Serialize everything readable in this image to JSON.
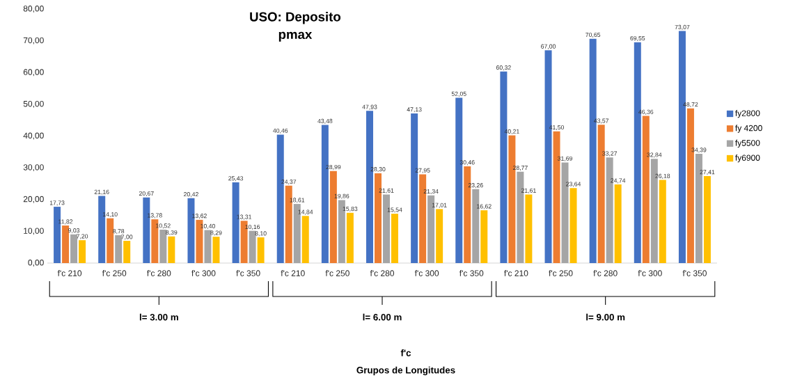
{
  "chart_data": {
    "type": "bar",
    "title": "USO: Deposito",
    "subtitle": "pmax",
    "annotations": [
      "l= 3.00 m",
      "l= 6.00 m",
      "l= 9.00 m",
      "f'c",
      "Grupos de Longitudes"
    ],
    "categories": [
      "f'c 210",
      "f'c 250",
      "f'c 280",
      "f'c 300",
      "f'c 350",
      "f'c 210",
      "f'c 250",
      "f'c 280",
      "f'c 300",
      "f'c 350",
      "f'c 210",
      "f'c 250",
      "f'c 280",
      "f'c 300",
      "f'c 350"
    ],
    "series": [
      {
        "name": "fy2800",
        "color": "#4472c4",
        "values": [
          17.73,
          21.16,
          20.67,
          20.42,
          25.43,
          40.46,
          43.48,
          47.93,
          47.13,
          52.05,
          60.32,
          67.0,
          70.65,
          69.55,
          73.07
        ],
        "value_labels": [
          "17,73",
          "21,16",
          "20,67",
          "20,42",
          "25,43",
          "40,46",
          "43,48",
          "47,93",
          "47,13",
          "52,05",
          "60,32",
          "67,00",
          "70,65",
          "69,55",
          "73,07"
        ]
      },
      {
        "name": "fy 4200",
        "color": "#ed7d31",
        "values": [
          11.82,
          14.1,
          13.78,
          13.62,
          13.31,
          24.37,
          28.99,
          28.3,
          27.95,
          30.46,
          40.21,
          41.5,
          43.57,
          46.36,
          48.72
        ],
        "value_labels": [
          "11,82",
          "14,10",
          "13,78",
          "13,62",
          "13,31",
          "24,37",
          "28,99",
          "28,30",
          "27,95",
          "30,46",
          "40,21",
          "41,50",
          "43,57",
          "46,36",
          "48,72"
        ]
      },
      {
        "name": "fy5500",
        "color": "#a5a5a5",
        "values": [
          9.03,
          8.78,
          10.52,
          10.4,
          10.16,
          18.61,
          19.86,
          21.61,
          21.34,
          23.26,
          28.77,
          31.69,
          33.27,
          32.84,
          34.39
        ],
        "value_labels": [
          "9,03",
          "8,78",
          "10,52",
          "10,40",
          "10,16",
          "18,61",
          "19,86",
          "21,61",
          "21,34",
          "23,26",
          "28,77",
          "31,69",
          "33,27",
          "32,84",
          "34,39"
        ]
      },
      {
        "name": "fy6900",
        "color": "#ffc000",
        "values": [
          7.2,
          7.0,
          8.39,
          8.29,
          8.1,
          14.84,
          15.83,
          15.54,
          17.01,
          16.62,
          21.61,
          23.64,
          24.74,
          26.18,
          27.41
        ],
        "value_labels": [
          "7,20",
          "7,00",
          "8,39",
          "8,29",
          "8,10",
          "14,84",
          "15,83",
          "15,54",
          "17,01",
          "16,62",
          "21,61",
          "23,64",
          "24,74",
          "26,18",
          "27,41"
        ]
      }
    ],
    "ylim": [
      0,
      80
    ],
    "yticks": [
      {
        "value": 0,
        "label": "0,00"
      },
      {
        "value": 10,
        "label": "10,00"
      },
      {
        "value": 20,
        "label": "20,00"
      },
      {
        "value": 30,
        "label": "30,00"
      },
      {
        "value": 40,
        "label": "40,00"
      },
      {
        "value": 50,
        "label": "50,00"
      },
      {
        "value": 60,
        "label": "60,00"
      },
      {
        "value": 70,
        "label": "70,00"
      },
      {
        "value": 80,
        "label": "80,00"
      }
    ],
    "legend": "right"
  }
}
